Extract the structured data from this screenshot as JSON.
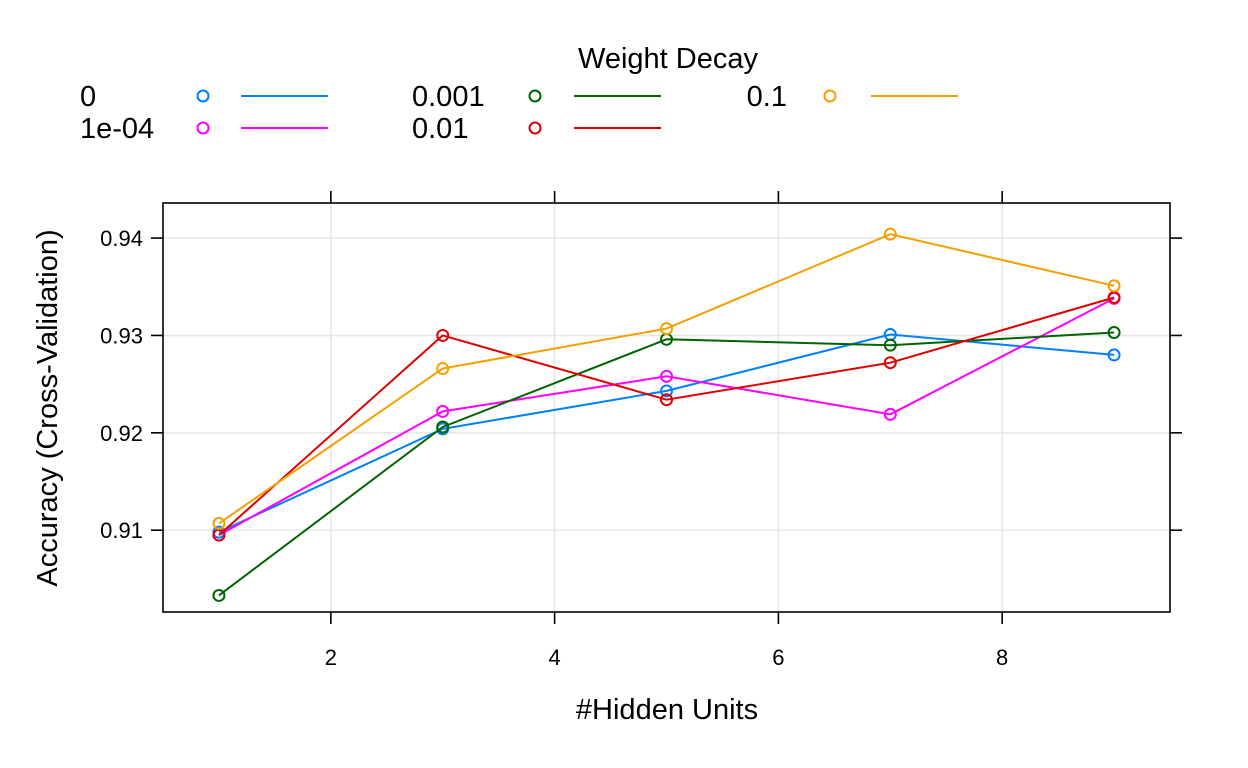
{
  "chart_data": {
    "type": "line",
    "legend_title": "Weight Decay",
    "legend_placement": "top",
    "xlabel": "#Hidden Units",
    "ylabel": "Accuracy (Cross-Validation)",
    "xlim": [
      0.5,
      9.5
    ],
    "ylim": [
      0.9016,
      0.9436
    ],
    "x_ticks": [
      2,
      4,
      6,
      8
    ],
    "y_ticks": [
      0.91,
      0.92,
      0.93,
      0.94
    ],
    "x_tick_labels": [
      "2",
      "4",
      "6",
      "8"
    ],
    "y_tick_labels": [
      "0.91",
      "0.92",
      "0.93",
      "0.94"
    ],
    "grid": true,
    "x": [
      1,
      3,
      5,
      7,
      9
    ],
    "series": [
      {
        "name": "0",
        "color": "#0080ff",
        "values": [
          0.9098,
          0.9204,
          0.9243,
          0.9301,
          0.928
        ]
      },
      {
        "name": "1e-04",
        "color": "#ff00ff",
        "values": [
          0.9095,
          0.9222,
          0.9258,
          0.9219,
          0.9338
        ]
      },
      {
        "name": "0.001",
        "color": "#006400",
        "values": [
          0.9033,
          0.9206,
          0.9296,
          0.929,
          0.9303
        ]
      },
      {
        "name": "0.01",
        "color": "#e00000",
        "values": [
          0.9095,
          0.93,
          0.9234,
          0.9272,
          0.9339
        ]
      },
      {
        "name": "0.1",
        "color": "#f5a000",
        "values": [
          0.9107,
          0.9266,
          0.9307,
          0.9404,
          0.9351
        ]
      }
    ]
  }
}
